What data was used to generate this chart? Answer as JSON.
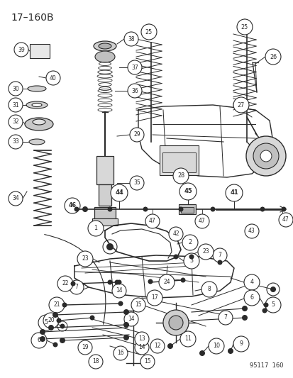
{
  "title": "17–160B",
  "watermark": "95117  160",
  "bg_color": "#ffffff",
  "line_color": "#2a2a2a",
  "fig_w": 4.14,
  "fig_h": 5.33,
  "dpi": 100,
  "label_fs": 5.8,
  "title_fs": 10,
  "watermark_fs": 6.0,
  "circle_r": 0.02,
  "bold_circle_r": 0.023
}
